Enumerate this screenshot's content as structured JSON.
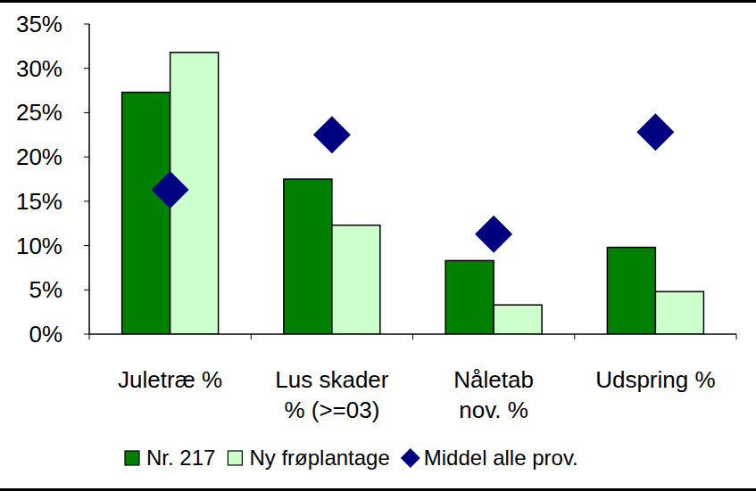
{
  "chart_data": {
    "type": "bar",
    "categories": [
      "Juletræ %",
      "Lus skader\n% (>=03)",
      "Nåletab\nnov. %",
      "Udspring %"
    ],
    "series": [
      {
        "name": "Nr. 217",
        "color": "#008000",
        "type": "bar",
        "values": [
          27.3,
          17.5,
          8.3,
          9.8
        ]
      },
      {
        "name": "Ny frøplantage",
        "color": "#ccffcc",
        "type": "bar",
        "values": [
          31.8,
          12.3,
          3.3,
          4.8
        ]
      },
      {
        "name": "Middel alle prov.",
        "color": "#000080",
        "type": "scatter",
        "marker": "diamond",
        "values": [
          16.3,
          22.5,
          11.3,
          22.8
        ]
      }
    ],
    "ylim": [
      0,
      35
    ],
    "yticks": [
      {
        "value": 0,
        "label": "0%"
      },
      {
        "value": 5,
        "label": "5%"
      },
      {
        "value": 10,
        "label": "10%"
      },
      {
        "value": 15,
        "label": "15%"
      },
      {
        "value": 20,
        "label": "20%"
      },
      {
        "value": 25,
        "label": "25%"
      },
      {
        "value": 30,
        "label": "30%"
      },
      {
        "value": 35,
        "label": "35%"
      }
    ],
    "grid": false,
    "legend": "bottom"
  }
}
